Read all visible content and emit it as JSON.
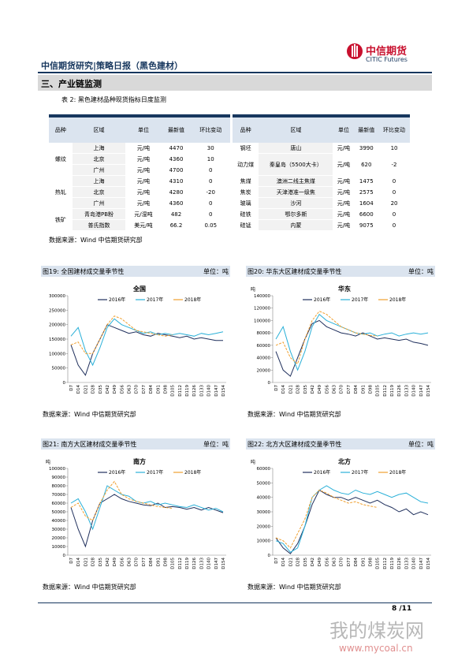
{
  "header": {
    "title": "中信期货研究|策略日报（黑色建材）",
    "logo_cn": "中信期货",
    "logo_en": "CITIC Futures"
  },
  "section": "三、产业链监测",
  "table": {
    "caption": "表 2: 黑色建材品种现货指标日度监测",
    "columns": [
      "品种",
      "区域",
      "单位",
      "最新值",
      "环比变动"
    ],
    "left": [
      {
        "name": "螺纹",
        "rows": [
          [
            "上海",
            "元/吨",
            "4470",
            "30"
          ],
          [
            "北京",
            "元/吨",
            "4360",
            "10"
          ],
          [
            "广州",
            "元/吨",
            "4700",
            "0"
          ]
        ]
      },
      {
        "name": "热轧",
        "rows": [
          [
            "上海",
            "元/吨",
            "4310",
            "0"
          ],
          [
            "北京",
            "元/吨",
            "4280",
            "-20"
          ],
          [
            "广州",
            "元/吨",
            "4360",
            "0"
          ]
        ]
      },
      {
        "name": "铁矿",
        "rows": [
          [
            "青岛港PB粉",
            "元/湿吨",
            "482",
            "0"
          ],
          [
            "普氏指数",
            "美元/吨",
            "66.2",
            "0.05"
          ]
        ]
      }
    ],
    "right": [
      [
        "钢坯",
        "唐山",
        "元/吨",
        "3990",
        "10"
      ],
      [
        "动力煤",
        "秦皇岛（5500大卡）",
        "元/吨",
        "620",
        "-2"
      ],
      [
        "焦煤",
        "澳洲二线主焦煤",
        "元/吨",
        "1475",
        "0"
      ],
      [
        "焦炭",
        "天津港准一级焦",
        "元/吨",
        "2575",
        "0"
      ],
      [
        "玻璃",
        "沙河",
        "元/吨",
        "1604",
        "20"
      ],
      [
        "硅铁",
        "鄂尔多斯",
        "元/吨",
        "6600",
        "0"
      ],
      [
        "硅锰",
        "内蒙",
        "元/吨",
        "9075",
        "0"
      ]
    ],
    "source": "数据来源：Wind 中信期货研究部"
  },
  "chart_data": [
    {
      "type": "line",
      "title": "图19: 全国建材成交量季节性",
      "unit": "单位：吨",
      "inner_title": "全国",
      "source": "数据来源：Wind 中信期货研究部",
      "categories": [
        "D7",
        "D14",
        "D21",
        "D28",
        "D35",
        "D42",
        "D49",
        "D56",
        "D63",
        "D70",
        "D77",
        "D84",
        "D91",
        "D98",
        "D105",
        "D112",
        "D119",
        "D126",
        "D133",
        "D140",
        "D147",
        "D154"
      ],
      "ylim": [
        0,
        300000
      ],
      "yticks": [
        0,
        50000,
        100000,
        150000,
        200000,
        250000,
        300000
      ],
      "series": [
        {
          "name": "2016年",
          "color": "#1f2f5c",
          "values": [
            130000,
            60000,
            25000,
            100000,
            150000,
            200000,
            190000,
            180000,
            170000,
            175000,
            165000,
            160000,
            170000,
            165000,
            160000,
            155000,
            160000,
            150000,
            155000,
            150000,
            145000,
            145000
          ]
        },
        {
          "name": "2017年",
          "color": "#2ab0d8",
          "values": [
            160000,
            190000,
            110000,
            60000,
            120000,
            190000,
            220000,
            200000,
            190000,
            180000,
            170000,
            175000,
            165000,
            170000,
            165000,
            170000,
            165000,
            160000,
            170000,
            165000,
            170000,
            175000
          ]
        },
        {
          "name": "2018年",
          "color": "#f0a030",
          "values": [
            130000,
            140000,
            100000,
            100000,
            150000,
            200000,
            230000,
            220000,
            200000,
            180000,
            175000,
            170000,
            165000,
            160000,
            165000,
            null,
            null,
            null,
            null,
            null,
            null,
            null
          ]
        }
      ]
    },
    {
      "type": "line",
      "title": "图20: 华东大区建材成交量季节性",
      "unit": "单位：吨",
      "inner_title": "华东",
      "y_unit": "吨",
      "source": "数据来源：Wind 中信期货研究部",
      "categories": [
        "D7",
        "D14",
        "D21",
        "D28",
        "D35",
        "D42",
        "D49",
        "D56",
        "D63",
        "D70",
        "D77",
        "D84",
        "D91",
        "D98",
        "D105",
        "D112",
        "D119",
        "D126",
        "D133",
        "D140",
        "D147",
        "D154"
      ],
      "ylim": [
        0,
        140000
      ],
      "yticks": [
        0,
        20000,
        40000,
        60000,
        80000,
        100000,
        120000,
        140000
      ],
      "series": [
        {
          "name": "2016年",
          "color": "#1f2f5c",
          "values": [
            50000,
            20000,
            10000,
            40000,
            70000,
            95000,
            100000,
            90000,
            85000,
            80000,
            78000,
            75000,
            80000,
            75000,
            70000,
            72000,
            70000,
            68000,
            70000,
            65000,
            63000,
            60000
          ]
        },
        {
          "name": "2017年",
          "color": "#2ab0d8",
          "values": [
            70000,
            90000,
            50000,
            20000,
            50000,
            90000,
            110000,
            100000,
            95000,
            90000,
            85000,
            80000,
            78000,
            80000,
            75000,
            78000,
            80000,
            75000,
            78000,
            80000,
            78000,
            80000
          ]
        },
        {
          "name": "2018年",
          "color": "#f0a030",
          "values": [
            60000,
            65000,
            40000,
            30000,
            70000,
            100000,
            115000,
            110000,
            100000,
            90000,
            85000,
            80000,
            78000,
            76000,
            75000,
            null,
            null,
            null,
            null,
            null,
            null,
            null
          ]
        }
      ]
    },
    {
      "type": "line",
      "title": "图21: 南方大区建材成交量季节性",
      "unit": "单位：吨",
      "inner_title": "南方",
      "y_unit": "吨",
      "source": "数据来源：Wind 中信期货研究部",
      "categories": [
        "D7",
        "D14",
        "D21",
        "D28",
        "D35",
        "D42",
        "D49",
        "D56",
        "D63",
        "D70",
        "D77",
        "D84",
        "D91",
        "D98",
        "D105",
        "D112",
        "D119",
        "D126",
        "D133",
        "D140",
        "D147",
        "D154"
      ],
      "ylim": [
        0,
        100000
      ],
      "yticks": [
        0,
        10000,
        20000,
        30000,
        40000,
        50000,
        60000,
        70000,
        80000,
        90000,
        100000
      ],
      "series": [
        {
          "name": "2016年",
          "color": "#1f2f5c",
          "values": [
            55000,
            30000,
            10000,
            40000,
            60000,
            65000,
            70000,
            65000,
            62000,
            60000,
            58000,
            57000,
            60000,
            55000,
            56000,
            55000,
            53000,
            55000,
            52000,
            55000,
            52000,
            49000
          ]
        },
        {
          "name": "2017年",
          "color": "#2ab0d8",
          "values": [
            60000,
            65000,
            50000,
            30000,
            55000,
            80000,
            75000,
            70000,
            68000,
            62000,
            60000,
            62000,
            58000,
            60000,
            58000,
            56000,
            55000,
            58000,
            55000,
            52000,
            54000,
            50000
          ]
        },
        {
          "name": "2018年",
          "color": "#f0a030",
          "values": [
            55000,
            60000,
            45000,
            40000,
            60000,
            75000,
            85000,
            70000,
            65000,
            62000,
            60000,
            58000,
            56000,
            55000,
            54000,
            null,
            null,
            null,
            null,
            null,
            null,
            null
          ]
        }
      ]
    },
    {
      "type": "line",
      "title": "图22: 北方大区建材成交量季节性",
      "unit": "单位：吨",
      "inner_title": "北方",
      "y_unit": "吨",
      "source": "数据来源：Wind 中信期货研究部",
      "categories": [
        "D7",
        "D14",
        "D21",
        "D28",
        "D35",
        "D42",
        "D49",
        "D56",
        "D63",
        "D70",
        "D77",
        "D84",
        "D91",
        "D98",
        "D105",
        "D112",
        "D119",
        "D126",
        "D133",
        "D140",
        "D147",
        "D154"
      ],
      "ylim": [
        0,
        60000
      ],
      "yticks": [
        0,
        10000,
        20000,
        30000,
        40000,
        50000,
        60000
      ],
      "series": [
        {
          "name": "2016年",
          "color": "#1f2f5c",
          "values": [
            12000,
            5000,
            1000,
            8000,
            20000,
            35000,
            45000,
            42000,
            40000,
            40000,
            38000,
            40000,
            38000,
            36000,
            38000,
            35000,
            33000,
            30000,
            32000,
            28000,
            30000,
            28000
          ]
        },
        {
          "name": "2017年",
          "color": "#2ab0d8",
          "values": [
            10000,
            8000,
            2000,
            5000,
            20000,
            40000,
            45000,
            48000,
            45000,
            43000,
            42000,
            45000,
            43000,
            42000,
            44000,
            42000,
            40000,
            42000,
            43000,
            40000,
            37000,
            36000
          ]
        },
        {
          "name": "2018年",
          "color": "#f0a030",
          "values": [
            12000,
            10000,
            5000,
            15000,
            25000,
            40000,
            45000,
            43000,
            40000,
            38000,
            36000,
            37000,
            35000,
            34000,
            33000,
            null,
            null,
            null,
            null,
            null,
            null,
            null
          ]
        }
      ]
    }
  ],
  "page": "8 /11",
  "watermark": {
    "title": "我的煤炭网",
    "url": "www.mycoal.cn"
  }
}
